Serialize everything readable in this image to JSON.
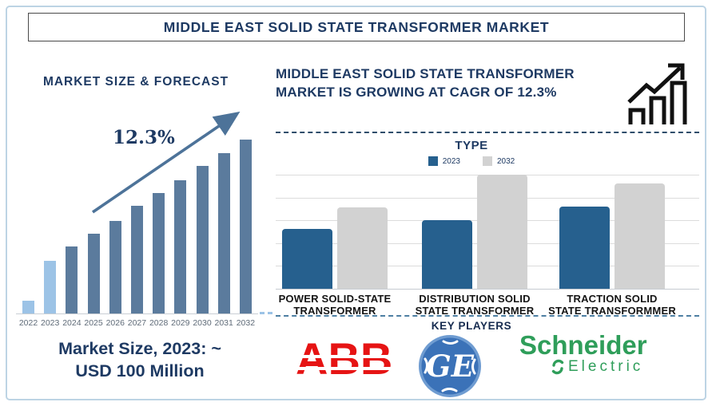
{
  "page": {
    "title": "MIDDLE EAST SOLID STATE TRANSFORMER MARKET"
  },
  "left_panel": {
    "market_size_line1": "Market Size, 2023: ~",
    "market_size_line2": "USD 100 Million"
  },
  "right_panel": {
    "heading_line1": "MIDDLE EAST SOLID STATE TRANSFORMER",
    "heading_line2": "MARKET IS GROWING AT CAGR OF 12.3%",
    "growth_icon": "growth-chart-icon",
    "key_players_title": "KEY PLAYERS",
    "players": [
      {
        "name": "ABB"
      },
      {
        "name": "GE"
      },
      {
        "name": "Schneider",
        "sub": "Electric"
      }
    ]
  },
  "chart_data": [
    {
      "id": "market-size-forecast",
      "type": "bar",
      "title": "MARKET SIZE & FORECAST",
      "categories": [
        "2022",
        "2023",
        "2024",
        "2025",
        "2026",
        "2027",
        "2028",
        "2029",
        "2030",
        "2031",
        "2032"
      ],
      "values": [
        16,
        66,
        84,
        100,
        116,
        135,
        151,
        167,
        185,
        201,
        218
      ],
      "value_scale": "relative bar heights, no y-axis shown",
      "highlight_categories": [
        "2022",
        "2023"
      ],
      "bar_color": "#5b7b9d",
      "highlight_color": "#9cc3e6",
      "annotation": "12.3%",
      "annotation_note": "upward trend arrow labeled with CAGR",
      "footnote": "Market Size, 2023: ~ USD 100 Million",
      "grid": false,
      "xlabel": "",
      "ylabel": ""
    },
    {
      "id": "market-by-type",
      "type": "bar",
      "title": "TYPE",
      "categories": [
        "POWER SOLID-STATE\nTRANSFORMER",
        "DISTRIBUTION SOLID\nSTATE TRANSFORMER",
        "TRACTION SOLID\nSTATE TRANSFORMMER"
      ],
      "series": [
        {
          "name": "2023",
          "color": "#26608e",
          "values": [
            75,
            86,
            103
          ]
        },
        {
          "name": "2032",
          "color": "#d2d2d2",
          "values": [
            102,
            143,
            132
          ]
        }
      ],
      "value_scale": "relative bar heights, no y-axis shown",
      "grid": true,
      "legend_position": "top",
      "xlabel": "",
      "ylabel": ""
    }
  ],
  "colors": {
    "navy": "#1e3a63",
    "steel_bar": "#5b7b9d",
    "light_bar": "#9cc3e6",
    "trend_arrow": "#4d7399",
    "type_2023": "#26608e",
    "type_2032": "#d2d2d2",
    "dashed_separator_top": "#2e4d6b",
    "dashed_separator_bottom": "#4d7fa3",
    "abb_red": "#e61414",
    "ge_blue": "#3b72b8",
    "schneider_green": "#2f9e5a"
  }
}
